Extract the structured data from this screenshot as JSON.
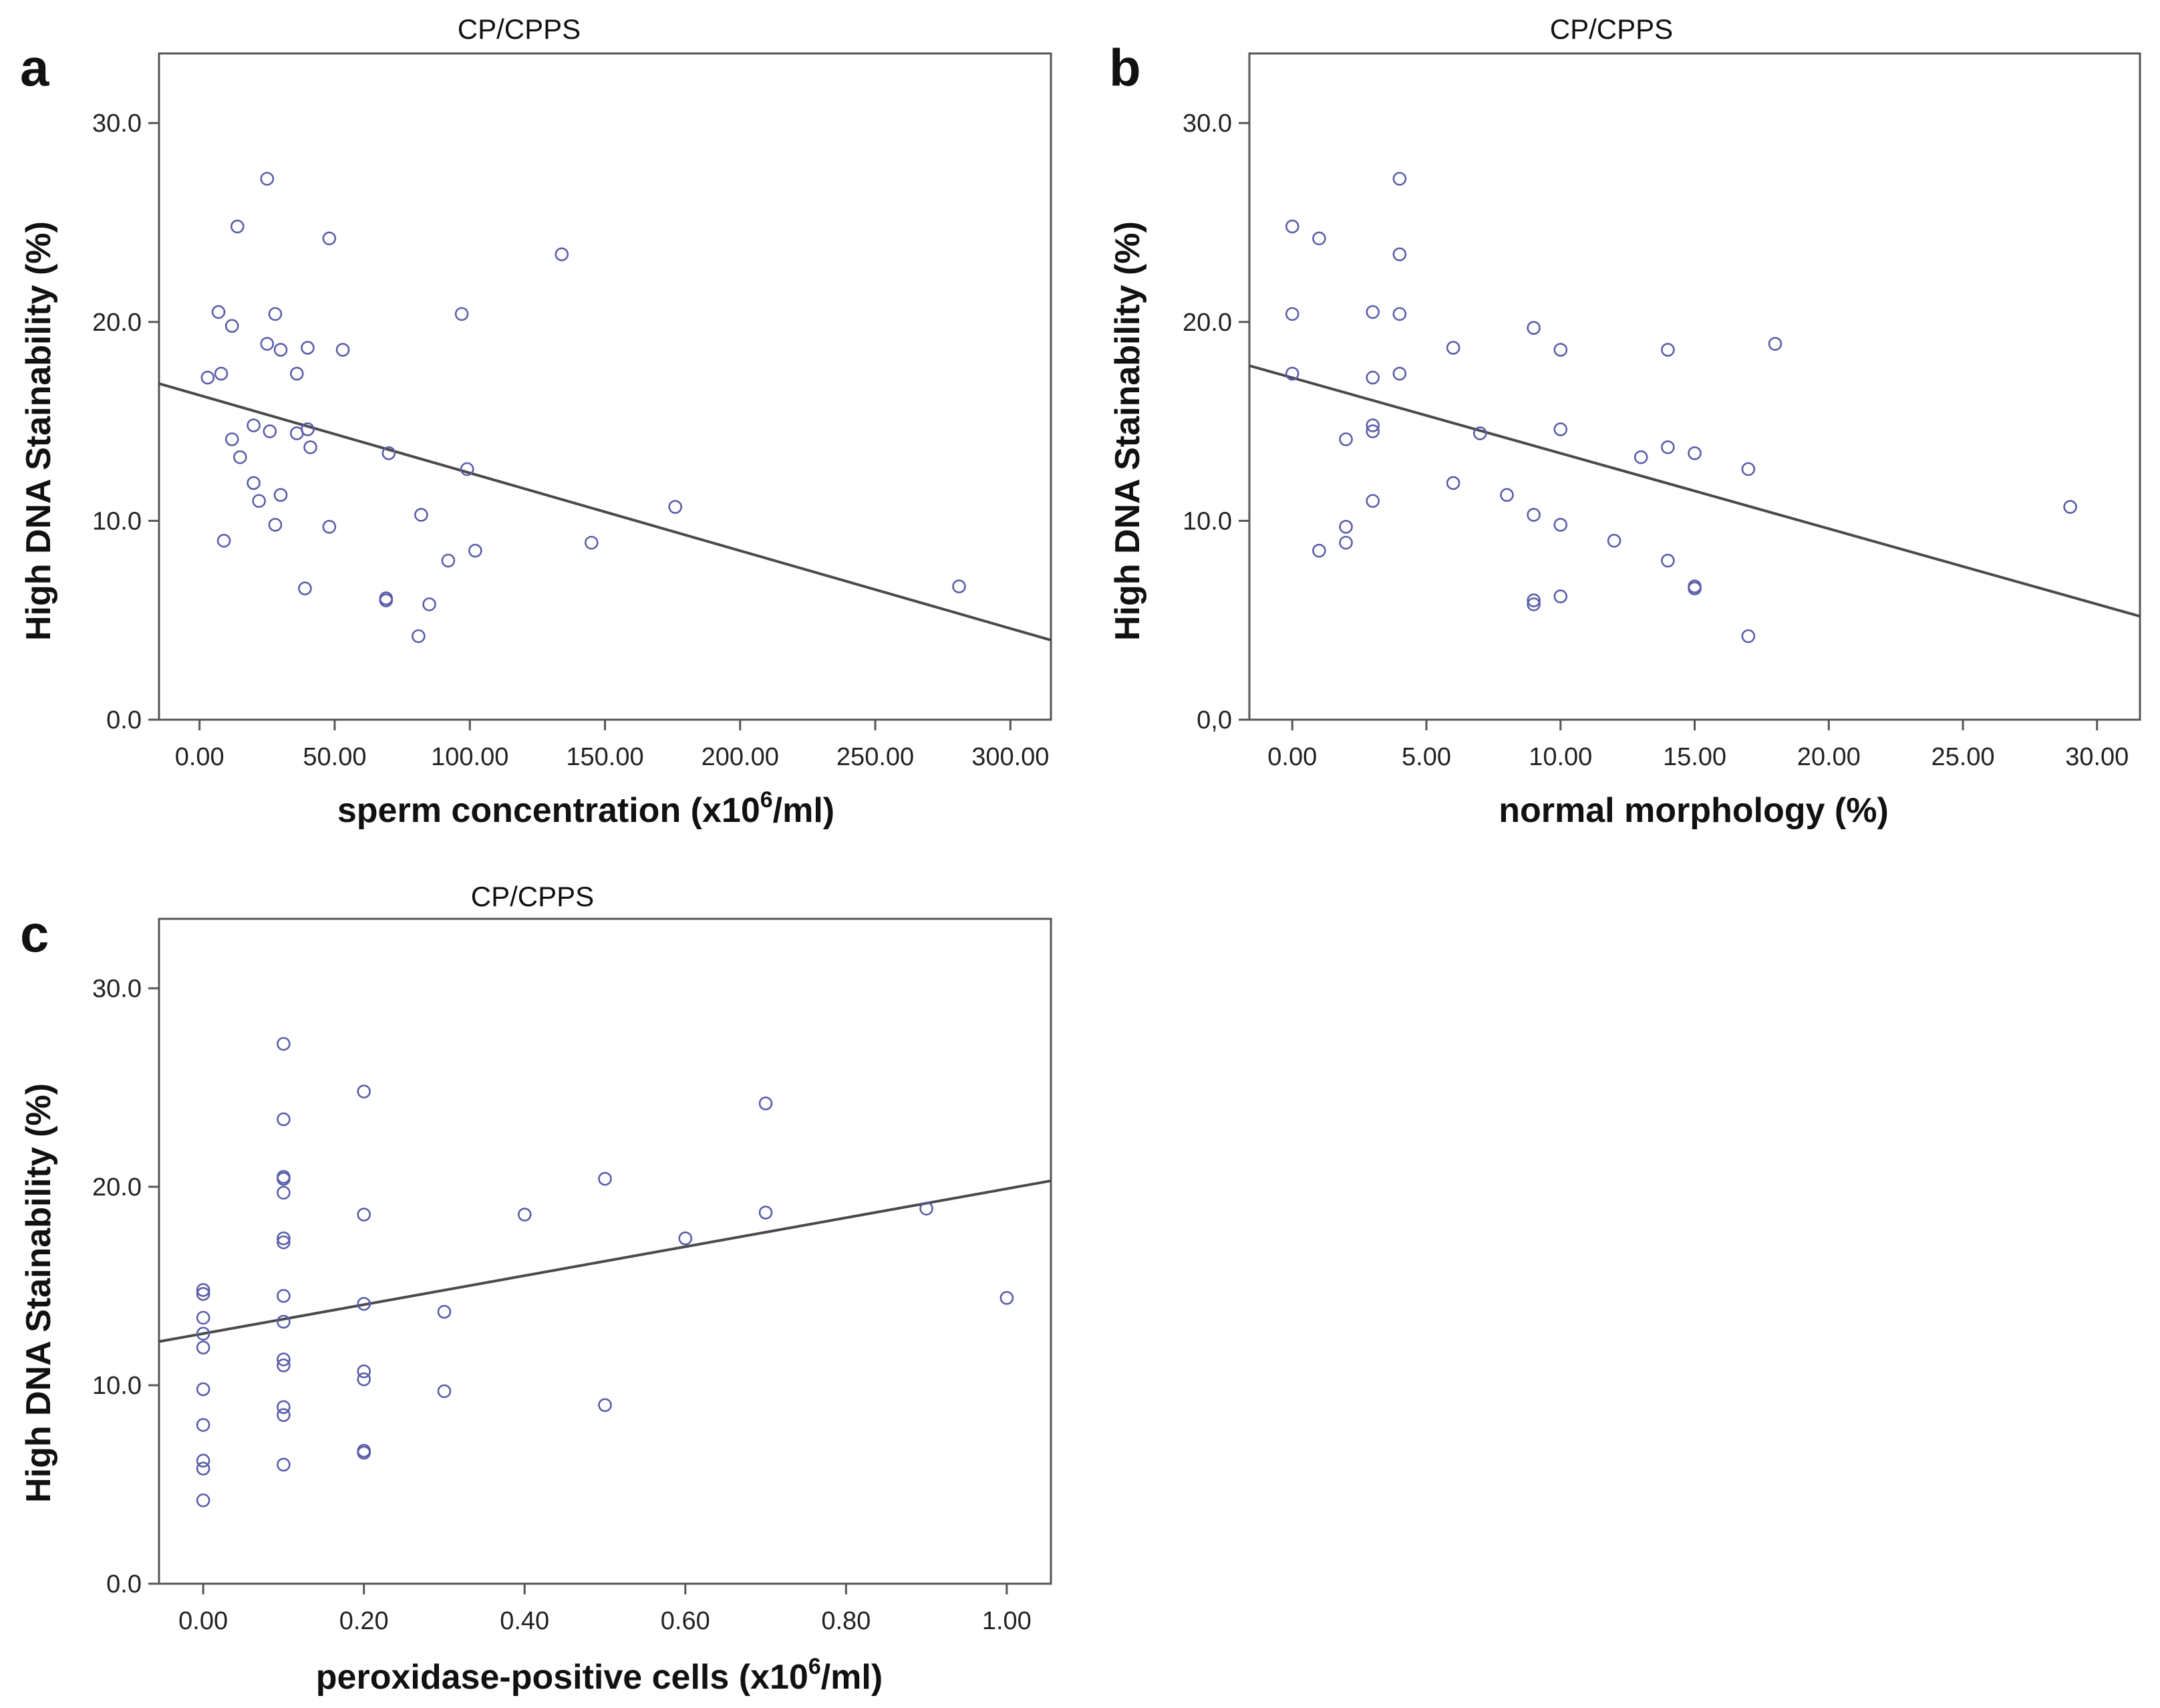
{
  "chart_data": [
    {
      "type": "scatter",
      "panel": "a",
      "title": "CP/CPPS",
      "xlabel": "sperm concentration (x10",
      "xlabel_sup": "6",
      "xlabel_tail": "/ml)",
      "ylabel": "High DNA Stainability (%)",
      "xlim": [
        -15,
        315
      ],
      "ylim": [
        0,
        33.5
      ],
      "xticks": [
        0,
        50,
        100,
        150,
        200,
        250,
        300
      ],
      "xtick_labels": [
        "0.00",
        "50.00",
        "100.00",
        "150.00",
        "200.00",
        "250.00",
        "300.00"
      ],
      "yticks": [
        0,
        10,
        20,
        30
      ],
      "ytick_labels": [
        "0.0",
        "10.0",
        "20.0",
        "30.0"
      ],
      "grid": false,
      "fit_line": {
        "x": [
          -15,
          315
        ],
        "y": [
          16.9,
          4.0
        ]
      },
      "points": [
        [
          3,
          17.2
        ],
        [
          7,
          20.5
        ],
        [
          8,
          17.4
        ],
        [
          9,
          9.0
        ],
        [
          12,
          19.8
        ],
        [
          12,
          14.1
        ],
        [
          14,
          24.8
        ],
        [
          15,
          13.2
        ],
        [
          20,
          14.8
        ],
        [
          20,
          11.9
        ],
        [
          22,
          11.0
        ],
        [
          25,
          27.2
        ],
        [
          25,
          18.9
        ],
        [
          26,
          14.5
        ],
        [
          28,
          20.4
        ],
        [
          28,
          9.8
        ],
        [
          30,
          18.6
        ],
        [
          30,
          11.3
        ],
        [
          36,
          14.4
        ],
        [
          36,
          17.4
        ],
        [
          39,
          6.6
        ],
        [
          40,
          18.7
        ],
        [
          40,
          14.6
        ],
        [
          41,
          13.7
        ],
        [
          48,
          24.2
        ],
        [
          48,
          9.7
        ],
        [
          53,
          18.6
        ],
        [
          69,
          6.1
        ],
        [
          69,
          6.0
        ],
        [
          70,
          13.4
        ],
        [
          81,
          4.2
        ],
        [
          82,
          10.3
        ],
        [
          85,
          5.8
        ],
        [
          92,
          8.0
        ],
        [
          97,
          20.4
        ],
        [
          99,
          12.6
        ],
        [
          102,
          8.5
        ],
        [
          134,
          23.4
        ],
        [
          145,
          8.9
        ],
        [
          176,
          10.7
        ],
        [
          281,
          6.7
        ]
      ]
    },
    {
      "type": "scatter",
      "panel": "b",
      "title": "CP/CPPS",
      "xlabel": "normal morphology (%)",
      "ylabel": "High DNA Stainability (%)",
      "xlim": [
        -1.6,
        31.6
      ],
      "ylim": [
        0,
        33.5
      ],
      "xticks": [
        0,
        5,
        10,
        15,
        20,
        25,
        30
      ],
      "xtick_labels": [
        "0.00",
        "5.00",
        "10.00",
        "15.00",
        "20.00",
        "25.00",
        "30.00"
      ],
      "yticks": [
        0,
        10,
        20,
        30
      ],
      "ytick_labels": [
        "0,0",
        "10.0",
        "20.0",
        "30.0"
      ],
      "grid": false,
      "fit_line": {
        "x": [
          -1.6,
          31.6
        ],
        "y": [
          17.8,
          5.2
        ]
      },
      "points": [
        [
          0,
          24.8
        ],
        [
          0,
          20.4
        ],
        [
          0,
          17.4
        ],
        [
          1,
          24.2
        ],
        [
          1,
          8.5
        ],
        [
          2,
          14.1
        ],
        [
          2,
          9.7
        ],
        [
          2,
          8.9
        ],
        [
          3,
          20.5
        ],
        [
          3,
          17.2
        ],
        [
          3,
          14.8
        ],
        [
          3,
          14.5
        ],
        [
          3,
          11.0
        ],
        [
          4,
          27.2
        ],
        [
          4,
          23.4
        ],
        [
          4,
          20.4
        ],
        [
          4,
          17.4
        ],
        [
          6,
          18.7
        ],
        [
          6,
          11.9
        ],
        [
          7,
          14.4
        ],
        [
          8,
          11.3
        ],
        [
          9,
          19.7
        ],
        [
          9,
          10.3
        ],
        [
          9,
          6.0
        ],
        [
          9,
          5.8
        ],
        [
          10,
          18.6
        ],
        [
          10,
          14.6
        ],
        [
          10,
          9.8
        ],
        [
          10,
          6.2
        ],
        [
          12,
          9.0
        ],
        [
          13,
          13.2
        ],
        [
          14,
          18.6
        ],
        [
          14,
          13.7
        ],
        [
          14,
          8.0
        ],
        [
          15,
          13.4
        ],
        [
          15,
          6.7
        ],
        [
          15,
          6.6
        ],
        [
          17,
          12.6
        ],
        [
          17,
          4.2
        ],
        [
          18,
          18.9
        ],
        [
          29,
          10.7
        ]
      ]
    },
    {
      "type": "scatter",
      "panel": "c",
      "title": "CP/CPPS",
      "xlabel": "peroxidase-positive cells (x10",
      "xlabel_sup": "6",
      "xlabel_tail": "/ml)",
      "ylabel": "High DNA Stainability (%)",
      "xlim": [
        -0.055,
        1.055
      ],
      "ylim": [
        0,
        33.5
      ],
      "xticks": [
        0,
        0.2,
        0.4,
        0.6,
        0.8,
        1.0
      ],
      "xtick_labels": [
        "0.00",
        "0.20",
        "0.40",
        "0.60",
        "0.80",
        "1.00"
      ],
      "yticks": [
        0,
        10,
        20,
        30
      ],
      "ytick_labels": [
        "0.0",
        "10.0",
        "20.0",
        "30.0"
      ],
      "grid": false,
      "fit_line": {
        "x": [
          -0.055,
          1.055
        ],
        "y": [
          12.2,
          20.3
        ]
      },
      "points": [
        [
          0,
          14.8
        ],
        [
          0,
          14.6
        ],
        [
          0,
          13.4
        ],
        [
          0,
          12.6
        ],
        [
          0,
          11.9
        ],
        [
          0,
          9.8
        ],
        [
          0,
          8.0
        ],
        [
          0,
          6.2
        ],
        [
          0,
          5.8
        ],
        [
          0,
          4.2
        ],
        [
          0.1,
          27.2
        ],
        [
          0.1,
          23.4
        ],
        [
          0.1,
          20.5
        ],
        [
          0.1,
          20.4
        ],
        [
          0.1,
          19.7
        ],
        [
          0.1,
          17.4
        ],
        [
          0.1,
          17.2
        ],
        [
          0.1,
          14.5
        ],
        [
          0.1,
          13.2
        ],
        [
          0.1,
          11.3
        ],
        [
          0.1,
          11.0
        ],
        [
          0.1,
          8.9
        ],
        [
          0.1,
          8.5
        ],
        [
          0.1,
          6.0
        ],
        [
          0.2,
          24.8
        ],
        [
          0.2,
          18.6
        ],
        [
          0.2,
          14.1
        ],
        [
          0.2,
          10.7
        ],
        [
          0.2,
          10.3
        ],
        [
          0.2,
          6.7
        ],
        [
          0.2,
          6.6
        ],
        [
          0.3,
          13.7
        ],
        [
          0.3,
          9.7
        ],
        [
          0.4,
          18.6
        ],
        [
          0.5,
          20.4
        ],
        [
          0.5,
          9.0
        ],
        [
          0.6,
          17.4
        ],
        [
          0.7,
          24.2
        ],
        [
          0.7,
          18.7
        ],
        [
          0.9,
          18.9
        ],
        [
          1.0,
          14.4
        ]
      ]
    }
  ]
}
